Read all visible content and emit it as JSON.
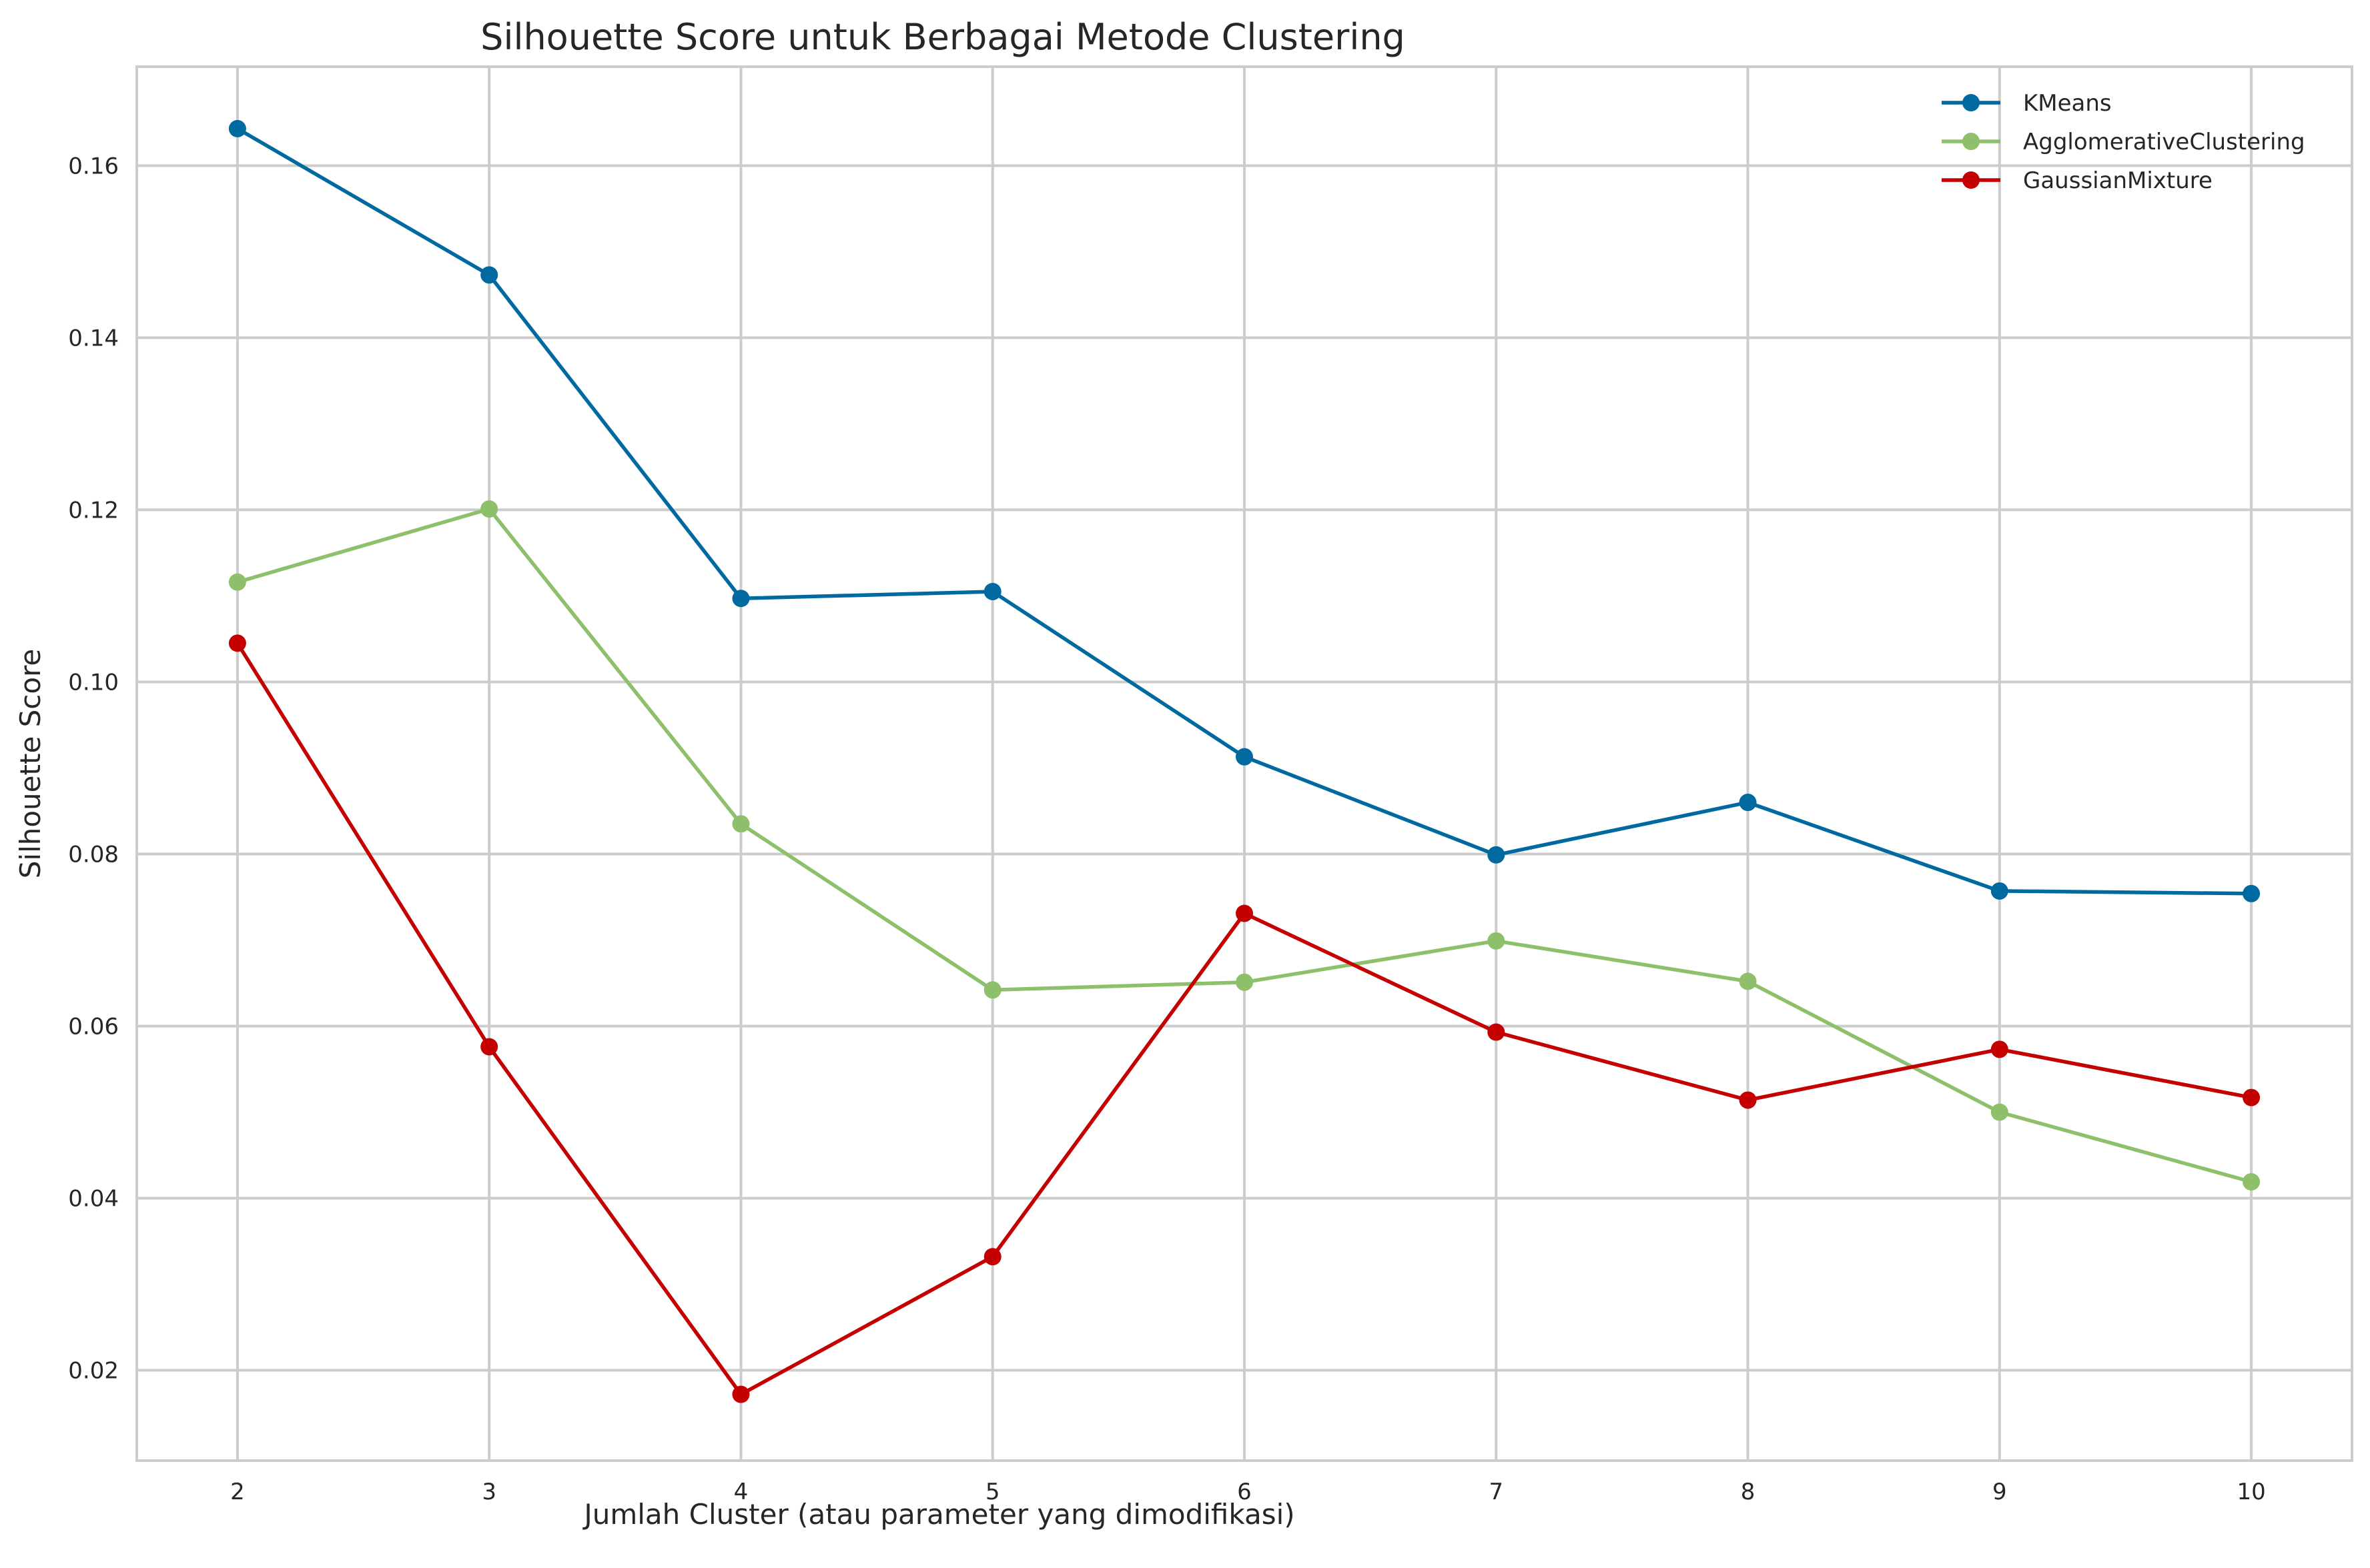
{
  "chart_data": {
    "type": "line",
    "title": "Silhouette Score untuk Berbagai Metode Clustering",
    "xlabel": "Jumlah Cluster (atau parameter yang dimodifikasi)",
    "ylabel": "Silhouette Score",
    "x": [
      2,
      3,
      4,
      5,
      6,
      7,
      8,
      9,
      10
    ],
    "xlim": [
      1.6,
      10.4
    ],
    "ylim": [
      0.0095,
      0.1715
    ],
    "xticks": [
      "2",
      "3",
      "4",
      "5",
      "6",
      "7",
      "8",
      "9",
      "10"
    ],
    "yticks": [
      {
        "value": 0.02,
        "label": "0.02"
      },
      {
        "value": 0.04,
        "label": "0.04"
      },
      {
        "value": 0.06,
        "label": "0.06"
      },
      {
        "value": 0.08,
        "label": "0.08"
      },
      {
        "value": 0.1,
        "label": "0.10"
      },
      {
        "value": 0.12,
        "label": "0.12"
      },
      {
        "value": 0.14,
        "label": "0.14"
      },
      {
        "value": 0.16,
        "label": "0.16"
      }
    ],
    "grid": true,
    "legend_position": "top-right",
    "series": [
      {
        "name": "KMeans",
        "color": "#0069a0",
        "values": [
          0.1643,
          0.1473,
          0.1097,
          0.1105,
          0.0913,
          0.0799,
          0.086,
          0.0757,
          0.0754
        ]
      },
      {
        "name": "AgglomerativeClustering",
        "color": "#8ec06c",
        "values": [
          0.1116,
          0.1201,
          0.0835,
          0.0642,
          0.0651,
          0.0699,
          0.0652,
          0.05,
          0.0419
        ]
      },
      {
        "name": "GaussianMixture",
        "color": "#c40000",
        "values": [
          0.1045,
          0.0576,
          0.0172,
          0.0332,
          0.0731,
          0.0593,
          0.0514,
          0.0573,
          0.0517
        ]
      }
    ]
  }
}
